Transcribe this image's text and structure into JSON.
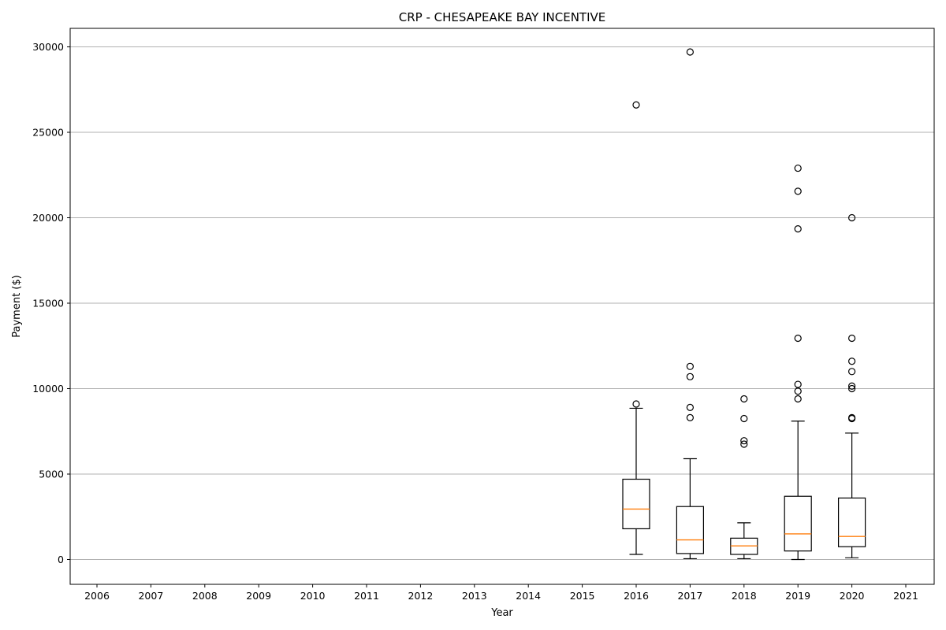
{
  "chart_data": {
    "type": "box",
    "title": "CRP - CHESAPEAKE BAY INCENTIVE",
    "xlabel": "Year",
    "ylabel": "Payment ($)",
    "categories": [
      "2006",
      "2007",
      "2008",
      "2009",
      "2010",
      "2011",
      "2012",
      "2013",
      "2014",
      "2015",
      "2016",
      "2017",
      "2018",
      "2019",
      "2020",
      "2021"
    ],
    "ylim": [
      -1500,
      31200
    ],
    "yticks": [
      0,
      5000,
      10000,
      15000,
      20000,
      25000,
      30000
    ],
    "grid": "horizontal",
    "colors": {
      "box": "#000000",
      "median": "#ff7f0e",
      "grid": "#b0b0b0"
    },
    "boxes": [
      {
        "category": "2016",
        "whisker_low": 300,
        "q1": 1800,
        "median": 2950,
        "q3": 4700,
        "whisker_high": 8850,
        "fliers": [
          9100,
          26600
        ]
      },
      {
        "category": "2017",
        "whisker_low": 50,
        "q1": 350,
        "median": 1150,
        "q3": 3100,
        "whisker_high": 5900,
        "fliers": [
          8300,
          8900,
          10700,
          11300,
          29700
        ]
      },
      {
        "category": "2018",
        "whisker_low": 50,
        "q1": 300,
        "median": 800,
        "q3": 1250,
        "whisker_high": 2150,
        "fliers": [
          6750,
          6950,
          8250,
          9400
        ]
      },
      {
        "category": "2019",
        "whisker_low": 0,
        "q1": 500,
        "median": 1500,
        "q3": 3700,
        "whisker_high": 8100,
        "fliers": [
          9400,
          9850,
          10250,
          12950,
          19350,
          21550,
          22900
        ]
      },
      {
        "category": "2020",
        "whisker_low": 100,
        "q1": 750,
        "median": 1350,
        "q3": 3600,
        "whisker_high": 7400,
        "fliers": [
          8250,
          8300,
          10000,
          10150,
          11000,
          11600,
          12950,
          20000
        ]
      }
    ]
  }
}
